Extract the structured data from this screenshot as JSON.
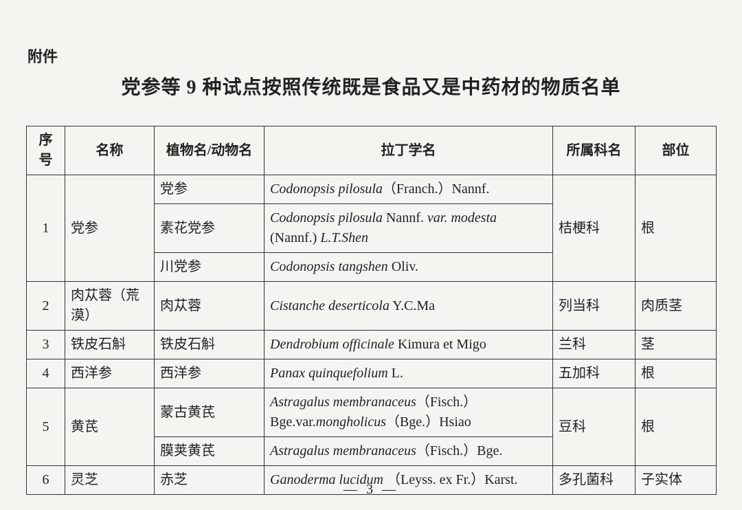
{
  "attachment_label": "附件",
  "title": "党参等 9 种试点按照传统既是食品又是中药材的物质名单",
  "page_number": "— 3 —",
  "table": {
    "headers": {
      "index": "序号",
      "name": "名称",
      "plant": "植物名/动物名",
      "latin": "拉丁学名",
      "family": "所属科名",
      "part": "部位"
    },
    "rows": [
      {
        "index": "1",
        "name": "党参",
        "family": "桔梗科",
        "part": "根",
        "variants": [
          {
            "plant": "党参",
            "latin_html": "<em>Codonopsis pilosula</em>（Franch.）Nannf."
          },
          {
            "plant": "素花党参",
            "latin_html": "<em>Codonopsis pilosula</em> Nannf. <em>var. modesta</em> (Nannf.) <em>L.T.Shen</em>"
          },
          {
            "plant": "川党参",
            "latin_html": "<em>Codonopsis tangshen</em> Oliv."
          }
        ]
      },
      {
        "index": "2",
        "name": "肉苁蓉（荒漠）",
        "family": "列当科",
        "part": "肉质茎",
        "variants": [
          {
            "plant": "肉苁蓉",
            "latin_html": "<em>Cistanche deserticola</em> Y.C.Ma"
          }
        ]
      },
      {
        "index": "3",
        "name": "铁皮石斛",
        "family": "兰科",
        "part": "茎",
        "variants": [
          {
            "plant": "铁皮石斛",
            "latin_html": "<em>Dendrobium officinale</em> Kimura et Migo"
          }
        ]
      },
      {
        "index": "4",
        "name": "西洋参",
        "family": "五加科",
        "part": "根",
        "variants": [
          {
            "plant": "西洋参",
            "latin_html": "<em>Panax quinquefolium</em> L."
          }
        ]
      },
      {
        "index": "5",
        "name": "黄芪",
        "family": "豆科",
        "part": "根",
        "variants": [
          {
            "plant": "蒙古黄芪",
            "latin_html": "<em>Astragalus membranaceus</em>（Fisch.）Bge.var.<em>mongholicus</em>（Bge.）Hsiao"
          },
          {
            "plant": "膜荚黄芪",
            "latin_html": "<em>Astragalus membranaceus</em>（Fisch.）Bge."
          }
        ]
      },
      {
        "index": "6",
        "name": "灵芝",
        "family": "多孔菌科",
        "part": "子实体",
        "variants": [
          {
            "plant": "赤芝",
            "latin_html": "<em>Ganoderma lucidum</em> （Leyss. ex Fr.）Karst."
          }
        ]
      }
    ]
  }
}
